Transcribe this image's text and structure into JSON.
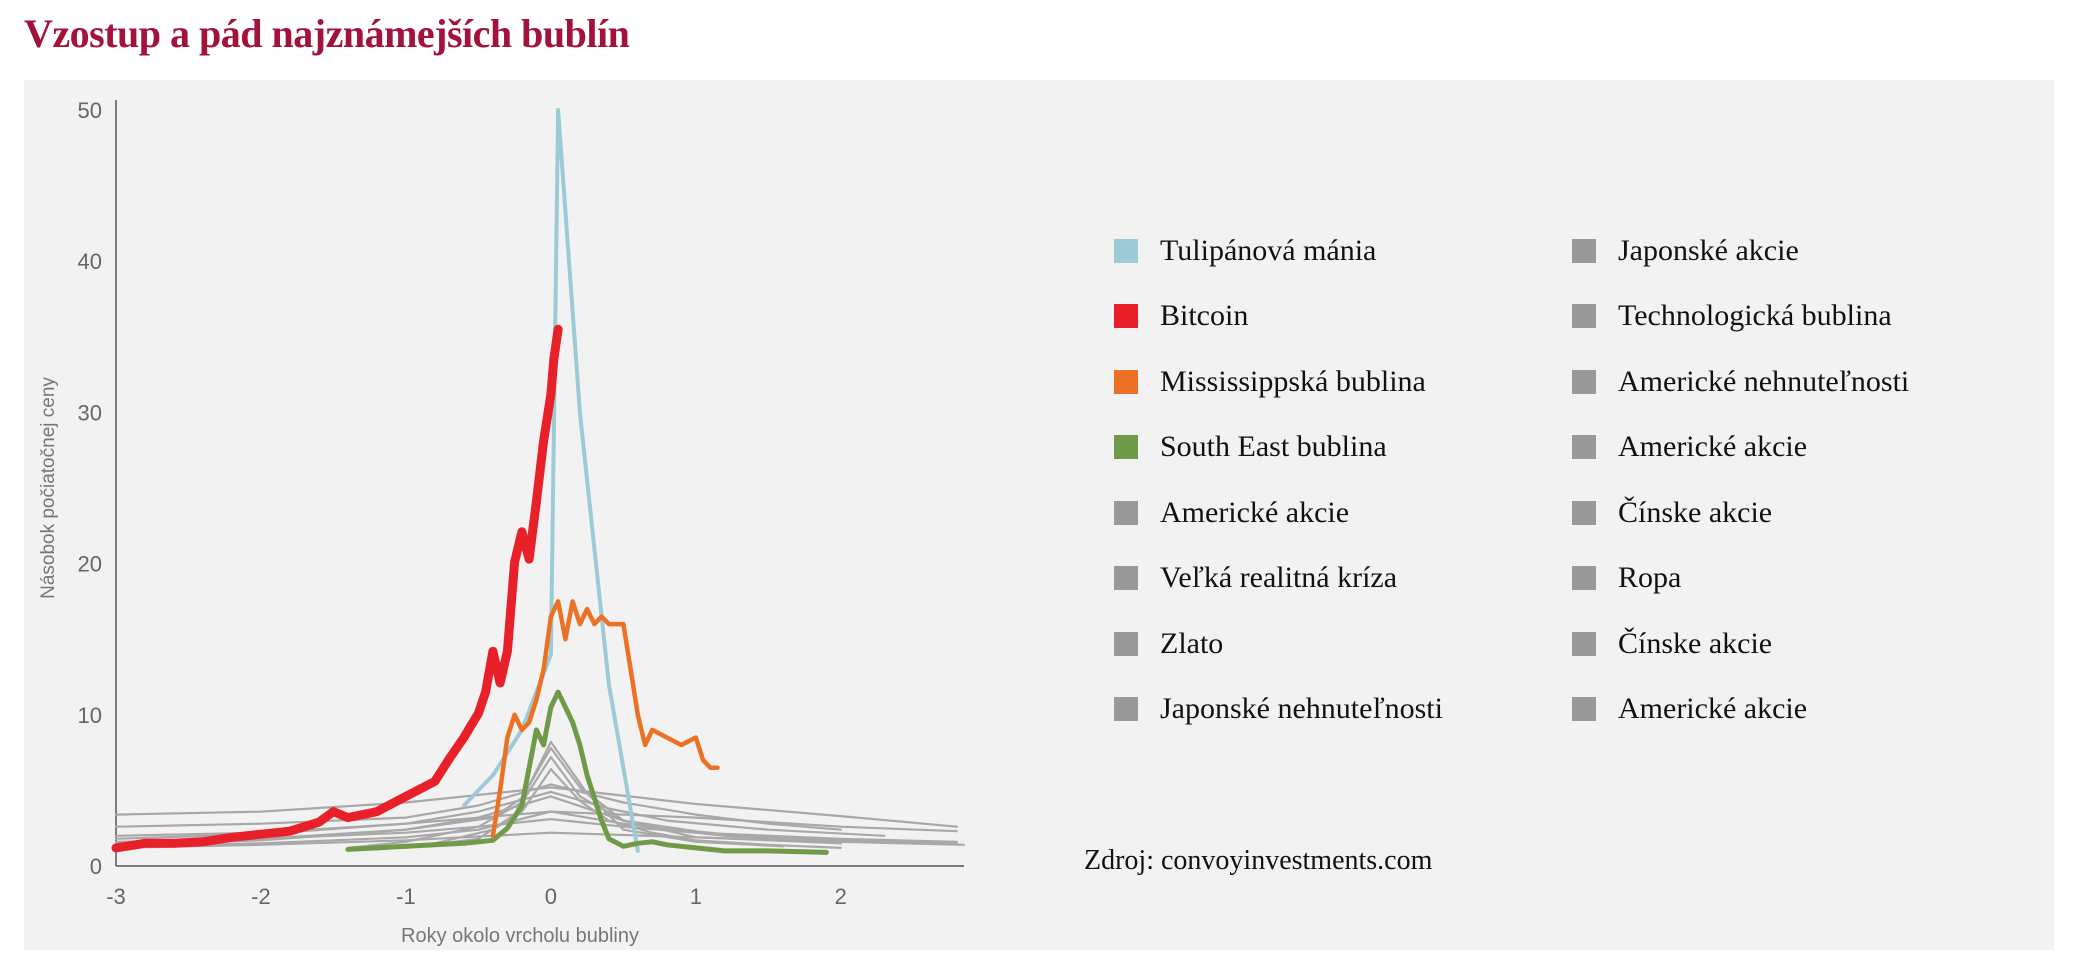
{
  "page": {
    "title": "Vzostup a pád najznámejších bublín",
    "source": "Zdroj: convoyinvestments.com"
  },
  "colors": {
    "title": "#a3123a",
    "panel_bg": "#f2f2f2",
    "gray_series": "#a8a8a8",
    "legend_gray": "#999999"
  },
  "chart_data": {
    "type": "line",
    "title": "",
    "xlabel": "Roky okolo vrcholu bubliny",
    "ylabel": "Násobok počiatočnej ceny",
    "xlim": [
      -3,
      2.85
    ],
    "ylim": [
      0,
      50
    ],
    "x_ticks": [
      "-3",
      "-2",
      "-1",
      "0",
      "1",
      "2"
    ],
    "x_tick_values": [
      -3,
      -2,
      -1,
      0,
      1,
      2
    ],
    "y_ticks": [
      "0",
      "10",
      "20",
      "30",
      "40",
      "50"
    ],
    "y_tick_values": [
      0,
      10,
      20,
      30,
      40,
      50
    ],
    "grid": false,
    "legend_position": "right",
    "series": [
      {
        "name": "Tulipánová mánia",
        "color": "#9ccbd6",
        "x": [
          -0.6,
          -0.4,
          -0.2,
          0,
          0.05,
          0.2,
          0.4,
          0.6
        ],
        "y": [
          4,
          6,
          9,
          14,
          50,
          30,
          12,
          1
        ]
      },
      {
        "name": "Bitcoin",
        "color": "#e8202a",
        "x": [
          -3,
          -2.8,
          -2.6,
          -2.4,
          -2.2,
          -2,
          -1.8,
          -1.6,
          -1.5,
          -1.4,
          -1.2,
          -1,
          -0.9,
          -0.8,
          -0.7,
          -0.6,
          -0.5,
          -0.45,
          -0.4,
          -0.35,
          -0.3,
          -0.25,
          -0.2,
          -0.15,
          -0.1,
          -0.05,
          0,
          0.02,
          0.05
        ],
        "y": [
          1.2,
          1.5,
          1.5,
          1.6,
          1.9,
          2.1,
          2.3,
          2.9,
          3.6,
          3.2,
          3.6,
          4.6,
          5.1,
          5.6,
          7.1,
          8.5,
          10.1,
          11.5,
          14.2,
          12.1,
          14.2,
          20.1,
          22.1,
          20.3,
          24.1,
          28.1,
          31.2,
          33.5,
          35.5
        ]
      },
      {
        "name": "Mississippská bublina",
        "color": "#ec7125",
        "x": [
          -0.4,
          -0.35,
          -0.3,
          -0.25,
          -0.2,
          -0.15,
          -0.1,
          -0.05,
          0,
          0.05,
          0.1,
          0.15,
          0.2,
          0.25,
          0.3,
          0.35,
          0.4,
          0.5,
          0.55,
          0.6,
          0.65,
          0.7,
          0.8,
          0.9,
          1,
          1.05,
          1.1,
          1.15
        ],
        "y": [
          2,
          5,
          8.5,
          10,
          9,
          9.5,
          11,
          13,
          16.5,
          17.5,
          15,
          17.5,
          16,
          17,
          16,
          16.5,
          16,
          16,
          13,
          10,
          8,
          9,
          8.5,
          8,
          8.5,
          7,
          6.5,
          6.5
        ]
      },
      {
        "name": "South East bublina",
        "color": "#6f9a47",
        "x": [
          -1.4,
          -1.2,
          -1,
          -0.8,
          -0.6,
          -0.4,
          -0.3,
          -0.2,
          -0.1,
          -0.05,
          0,
          0.05,
          0.1,
          0.15,
          0.2,
          0.25,
          0.3,
          0.35,
          0.4,
          0.5,
          0.6,
          0.7,
          0.8,
          1,
          1.2,
          1.5,
          1.9
        ],
        "y": [
          1.1,
          1.2,
          1.3,
          1.4,
          1.5,
          1.7,
          2.5,
          4,
          9,
          8,
          10.5,
          11.5,
          10.5,
          9.5,
          8,
          6,
          4.5,
          3,
          1.8,
          1.3,
          1.5,
          1.6,
          1.4,
          1.2,
          1,
          1,
          0.9
        ]
      },
      {
        "name": "Americké akcie",
        "color": "#a8a8a8",
        "x": [
          -3,
          -2,
          -1,
          -0.5,
          0,
          0.5,
          1,
          1.5,
          2
        ],
        "y": [
          1.4,
          1.7,
          2.4,
          3.2,
          4.6,
          3,
          2.3,
          1.8,
          1.5
        ]
      },
      {
        "name": "Veľká realitná kríza",
        "color": "#a8a8a8",
        "x": [
          -3,
          -2,
          -1,
          -0.5,
          0,
          0.5,
          1,
          2,
          2.8
        ],
        "y": [
          1.6,
          1.8,
          2.2,
          2.6,
          3.1,
          2.6,
          2.2,
          1.8,
          1.6
        ]
      },
      {
        "name": "Zlato",
        "color": "#a8a8a8",
        "x": [
          -1.4,
          -1,
          -0.5,
          -0.2,
          0,
          0.2,
          0.5,
          0.8,
          1.2,
          2
        ],
        "y": [
          1.2,
          1.6,
          2.6,
          4.2,
          7.2,
          4.6,
          3,
          2.4,
          2,
          1.6
        ]
      },
      {
        "name": "Japonské nehnuteľnosti",
        "color": "#a8a8a8",
        "x": [
          -3,
          -2,
          -1,
          0,
          1,
          2,
          2.8
        ],
        "y": [
          2,
          2.2,
          2.8,
          3.6,
          3.2,
          2.6,
          2.3
        ]
      },
      {
        "name": "Japonské akcie",
        "color": "#a8a8a8",
        "x": [
          -3,
          -2,
          -1,
          -0.5,
          0,
          0.5,
          1,
          1.5,
          2
        ],
        "y": [
          2.6,
          2.8,
          3.2,
          4,
          5.4,
          4.2,
          3.4,
          2.8,
          2.4
        ]
      },
      {
        "name": "Technologická bublina",
        "color": "#a8a8a8",
        "x": [
          -3,
          -2,
          -1,
          -0.4,
          -0.2,
          0,
          0.2,
          0.5,
          1,
          2
        ],
        "y": [
          1.5,
          1.8,
          2.4,
          3.2,
          4.5,
          7.8,
          5.2,
          3,
          1.9,
          1.5
        ]
      },
      {
        "name": "Americké nehnuteľnosti",
        "color": "#a8a8a8",
        "x": [
          -3,
          -2,
          -1,
          0,
          1,
          2,
          2.8
        ],
        "y": [
          3.4,
          3.6,
          4.2,
          5.2,
          4.1,
          3.3,
          2.6
        ]
      },
      {
        "name": "Americké akcie",
        "color": "#a8a8a8",
        "x": [
          -3,
          -2,
          -1,
          -0.5,
          0,
          0.4,
          0.8,
          1.5,
          2.3
        ],
        "y": [
          1.8,
          2.1,
          2.8,
          3.6,
          4.9,
          3.8,
          3,
          2.4,
          2
        ]
      },
      {
        "name": "Čínske akcie",
        "color": "#a8a8a8",
        "x": [
          -1.2,
          -0.8,
          -0.4,
          -0.2,
          0,
          0.2,
          0.4,
          0.7,
          1,
          1.5,
          2
        ],
        "y": [
          1.1,
          1.5,
          2.4,
          3.6,
          6.4,
          4.3,
          3,
          2.2,
          1.7,
          1.4,
          1.2
        ]
      },
      {
        "name": "Ropa",
        "color": "#a8a8a8",
        "x": [
          -3,
          -2,
          -1,
          -0.5,
          0,
          0.5,
          1,
          2,
          2.8
        ],
        "y": [
          1.3,
          1.5,
          1.9,
          2.4,
          3.6,
          2.8,
          2.2,
          1.7,
          1.5
        ]
      },
      {
        "name": "Čínske akcie",
        "color": "#a8a8a8",
        "x": [
          -1,
          -0.5,
          -0.25,
          0,
          0.25,
          0.5,
          1,
          1.6
        ],
        "y": [
          1.2,
          1.8,
          3.4,
          8.2,
          4.8,
          2.4,
          1.6,
          1.3
        ]
      },
      {
        "name": "Americké akcie",
        "color": "#a8a8a8",
        "x": [
          -3,
          -2,
          -1,
          0,
          1,
          2,
          2.85
        ],
        "y": [
          1.2,
          1.4,
          1.7,
          2.2,
          1.9,
          1.6,
          1.4
        ]
      }
    ]
  },
  "legend": {
    "items": [
      {
        "label": "Tulipánová mánia",
        "color": "#9ccbd6"
      },
      {
        "label": "Japonské akcie",
        "color": "#999999"
      },
      {
        "label": "Bitcoin",
        "color": "#e8202a"
      },
      {
        "label": "Technologická bublina",
        "color": "#999999"
      },
      {
        "label": "Mississippská bublina",
        "color": "#ec7125"
      },
      {
        "label": "Americké nehnuteľnosti",
        "color": "#999999"
      },
      {
        "label": "South East bublina",
        "color": "#6f9a47"
      },
      {
        "label": "Americké akcie",
        "color": "#999999"
      },
      {
        "label": "Americké akcie",
        "color": "#999999"
      },
      {
        "label": "Čínske akcie",
        "color": "#999999"
      },
      {
        "label": "Veľká realitná kríza",
        "color": "#999999"
      },
      {
        "label": "Ropa",
        "color": "#999999"
      },
      {
        "label": "Zlato",
        "color": "#999999"
      },
      {
        "label": "Čínske akcie",
        "color": "#999999"
      },
      {
        "label": "Japonské nehnuteľnosti",
        "color": "#999999"
      },
      {
        "label": "Americké akcie",
        "color": "#999999"
      }
    ]
  }
}
